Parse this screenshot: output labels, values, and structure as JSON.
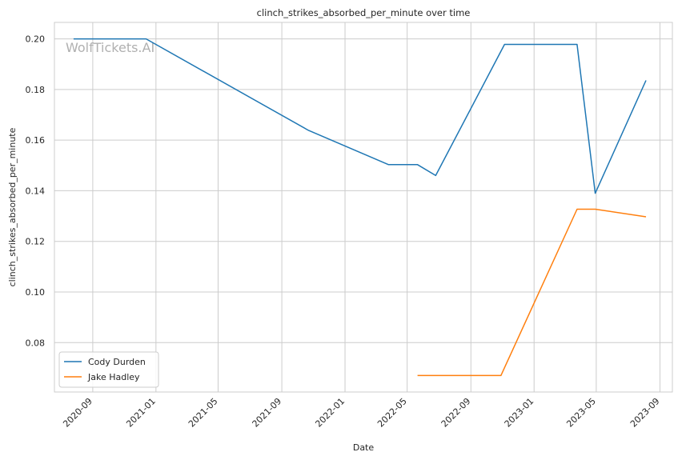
{
  "chart_data": {
    "type": "line",
    "title": "clinch_strikes_absorbed_per_minute over time",
    "xlabel": "Date",
    "ylabel": "clinch_strikes_absorbed_per_minute",
    "watermark": "WolfTickets.AI",
    "x_range": [
      "2020-06-19",
      "2023-09-25"
    ],
    "ylim": [
      0.0605,
      0.2065
    ],
    "x_ticks": [
      "2020-09",
      "2021-01",
      "2021-05",
      "2021-09",
      "2022-01",
      "2022-05",
      "2022-09",
      "2023-01",
      "2023-05",
      "2023-09"
    ],
    "y_ticks": [
      "0.08",
      "0.10",
      "0.12",
      "0.14",
      "0.16",
      "0.18",
      "0.20"
    ],
    "grid": true,
    "legend_position": "lower-left",
    "series": [
      {
        "name": "Cody Durden",
        "color": "#1f77b4",
        "points": [
          {
            "x": "2020-07-26",
            "y": 0.2
          },
          {
            "x": "2020-12-13",
            "y": 0.2
          },
          {
            "x": "2021-10-23",
            "y": 0.1638
          },
          {
            "x": "2022-03-26",
            "y": 0.1503
          },
          {
            "x": "2022-05-21",
            "y": 0.1503
          },
          {
            "x": "2022-06-25",
            "y": 0.146
          },
          {
            "x": "2022-11-05",
            "y": 0.1978
          },
          {
            "x": "2023-03-25",
            "y": 0.1978
          },
          {
            "x": "2023-04-29",
            "y": 0.139
          },
          {
            "x": "2023-08-05",
            "y": 0.1836
          }
        ]
      },
      {
        "name": "Jake Hadley",
        "color": "#ff7f0e",
        "points": [
          {
            "x": "2022-05-21",
            "y": 0.067
          },
          {
            "x": "2022-10-29",
            "y": 0.067
          },
          {
            "x": "2023-03-25",
            "y": 0.1327
          },
          {
            "x": "2023-04-29",
            "y": 0.1327
          },
          {
            "x": "2023-08-05",
            "y": 0.1297
          }
        ]
      }
    ]
  }
}
